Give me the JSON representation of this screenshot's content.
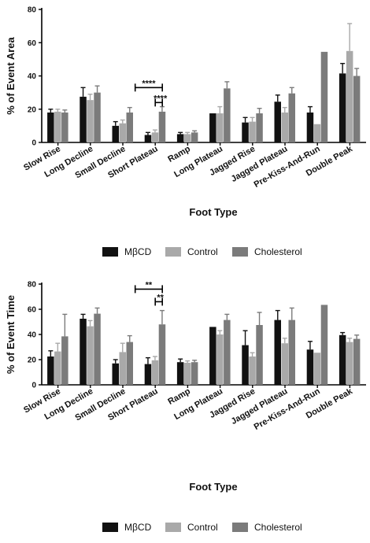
{
  "colors": {
    "MβCD": "#111111",
    "Control": "#a9a9a9",
    "Cholesterol": "#7b7b7b",
    "axis": "#000000"
  },
  "chart_data": [
    {
      "type": "bar",
      "title": "",
      "xlabel": "Foot Type",
      "ylabel": "% of Event Area",
      "ylim": [
        0,
        80
      ],
      "yticks": [
        0,
        20,
        40,
        60,
        80
      ],
      "categories": [
        "Slow Rise",
        "Long Decline",
        "Small Decline",
        "Short Plateau",
        "Ramp",
        "Long Plateau",
        "Jagged Rise",
        "Jagged Plateau",
        "Pre-Kiss-And-Run",
        "Double Peak"
      ],
      "series": [
        {
          "name": "MβCD",
          "values": [
            18,
            27.5,
            10,
            4.5,
            5,
            17.5,
            12,
            24.5,
            18,
            41.5
          ],
          "errors": [
            2,
            5.5,
            2.5,
            1.5,
            1,
            0,
            3,
            4,
            3.5,
            6
          ]
        },
        {
          "name": "Control",
          "values": [
            18.5,
            25.5,
            11.5,
            6,
            5,
            17.5,
            12.5,
            18,
            11,
            55
          ],
          "errors": [
            1.5,
            3.5,
            2,
            1.5,
            1,
            4,
            2.5,
            3,
            0,
            16.5
          ]
        },
        {
          "name": "Cholesterol",
          "values": [
            18,
            30,
            18,
            18.5,
            6,
            32.5,
            17.5,
            29.5,
            54.5,
            40
          ],
          "errors": [
            1.5,
            4,
            3,
            3,
            1,
            4,
            3,
            3.5,
            0,
            4.5
          ]
        }
      ],
      "significance": [
        {
          "label": "****",
          "between": [
            "MβCD",
            "Cholesterol"
          ],
          "category": "Short Plateau",
          "y": 33
        },
        {
          "label": "****",
          "between": [
            "Control",
            "Cholesterol"
          ],
          "category": "Short Plateau",
          "y": 24
        }
      ],
      "legend": "bottom"
    },
    {
      "type": "bar",
      "title": "",
      "xlabel": "Foot Type",
      "ylabel": "% of Event Time",
      "ylim": [
        0,
        80
      ],
      "yticks": [
        0,
        20,
        40,
        60,
        80
      ],
      "categories": [
        "Slow Rise",
        "Long Decline",
        "Small Decline",
        "Short Plateau",
        "Ramp",
        "Long Plateau",
        "Jagged Rise",
        "Jagged Plateau",
        "Pre-Kiss-And-Run",
        "Double Peak"
      ],
      "series": [
        {
          "name": "MβCD",
          "values": [
            22.5,
            52.5,
            17,
            16.5,
            18,
            46,
            31.5,
            51.5,
            28,
            39.5
          ],
          "errors": [
            4.5,
            3.5,
            3,
            5,
            2.5,
            0,
            11.5,
            7.5,
            6.5,
            2
          ]
        },
        {
          "name": "Control",
          "values": [
            26.5,
            46.5,
            26,
            19.5,
            17.5,
            40,
            22.5,
            33,
            25.5,
            34
          ],
          "errors": [
            6.5,
            4.5,
            7,
            3,
            1.5,
            3,
            3,
            4,
            0,
            3
          ]
        },
        {
          "name": "Cholesterol",
          "values": [
            38.5,
            56.5,
            34,
            48,
            18,
            51.5,
            47.5,
            51.5,
            63.5,
            36.5
          ],
          "errors": [
            17.5,
            4.5,
            5,
            11,
            1.5,
            4.5,
            10,
            9.5,
            0,
            3
          ]
        }
      ],
      "significance": [
        {
          "label": "**",
          "between": [
            "MβCD",
            "Cholesterol"
          ],
          "category": "Short Plateau",
          "y": 76
        },
        {
          "label": "**",
          "between": [
            "Control",
            "Cholesterol"
          ],
          "category": "Short Plateau",
          "y": 66
        }
      ],
      "legend": "bottom"
    }
  ]
}
